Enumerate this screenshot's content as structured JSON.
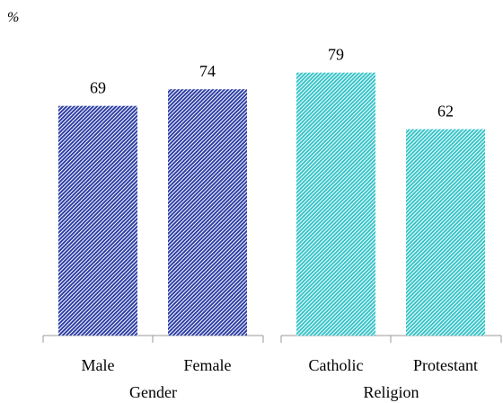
{
  "chart_data": {
    "type": "bar",
    "unit_label": "%",
    "ylim": [
      0,
      85
    ],
    "grid": false,
    "legend": "none",
    "value_labels": true,
    "groups": [
      {
        "name": "Gender",
        "color": "#2E3FA5",
        "bars": [
          {
            "category": "Male",
            "value": 69
          },
          {
            "category": "Female",
            "value": 74
          }
        ]
      },
      {
        "name": "Religion",
        "color": "#38C4C8",
        "bars": [
          {
            "category": "Catholic",
            "value": 79
          },
          {
            "category": "Protestant",
            "value": 62
          }
        ]
      }
    ]
  }
}
